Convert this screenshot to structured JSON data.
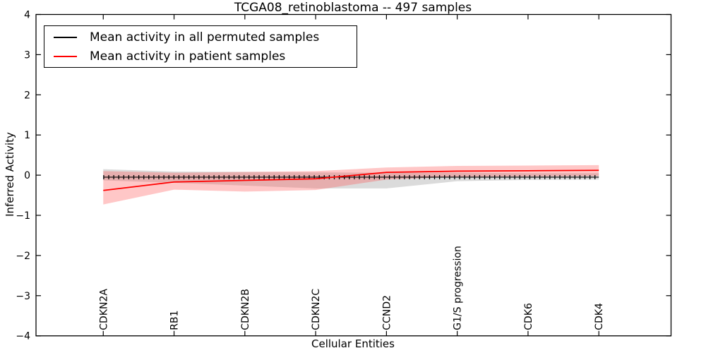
{
  "title": "TCGA08_retinoblastoma -- 497 samples",
  "legend": {
    "items": [
      {
        "label": "Mean activity in all permuted samples",
        "color": "#000000"
      },
      {
        "label": "Mean activity in patient samples",
        "color": "#ff0000"
      }
    ]
  },
  "chart_data": {
    "type": "line",
    "title": "TCGA08_retinoblastoma -- 497 samples",
    "xlabel": "Cellular Entities",
    "ylabel": "Inferred Activity",
    "ylim": [
      -4,
      4
    ],
    "xlim": [
      0.05,
      9.02
    ],
    "y_ticks": [
      -4,
      -3,
      -2,
      -1,
      0,
      1,
      2,
      3,
      4
    ],
    "grid": false,
    "legend_position": "upper left",
    "categories": [
      "CDKN2A",
      "RB1",
      "CDKN2B",
      "CDKN2C",
      "CCND2",
      "G1/S progression",
      "CDK6",
      "CDK4"
    ],
    "x": [
      1,
      2,
      3,
      4,
      5,
      6,
      7,
      8
    ],
    "series": [
      {
        "name": "Mean activity in all permuted samples",
        "color": "#000000",
        "line_width": 1.2,
        "marker": "tick",
        "values": [
          -0.05,
          -0.05,
          -0.05,
          -0.05,
          -0.05,
          -0.05,
          -0.05,
          -0.05
        ],
        "band_low": [
          -0.13,
          -0.19,
          -0.26,
          -0.33,
          -0.33,
          -0.15,
          -0.12,
          -0.11
        ],
        "band_high": [
          0.15,
          0.09,
          0.08,
          0.07,
          0.06,
          0.06,
          0.05,
          0.05
        ],
        "band_color": "#999999",
        "band_opacity": 0.35
      },
      {
        "name": "Mean activity in patient samples",
        "color": "#ff0000",
        "line_width": 1.8,
        "marker": "none",
        "values": [
          -0.38,
          -0.17,
          -0.13,
          -0.09,
          0.07,
          0.1,
          0.11,
          0.12
        ],
        "band_low": [
          -0.73,
          -0.36,
          -0.41,
          -0.37,
          -0.11,
          -0.04,
          -0.03,
          -0.02
        ],
        "band_high": [
          0.1,
          0.06,
          0.08,
          0.1,
          0.19,
          0.23,
          0.24,
          0.25
        ],
        "band_color": "#ff4444",
        "band_opacity": 0.3
      }
    ]
  }
}
